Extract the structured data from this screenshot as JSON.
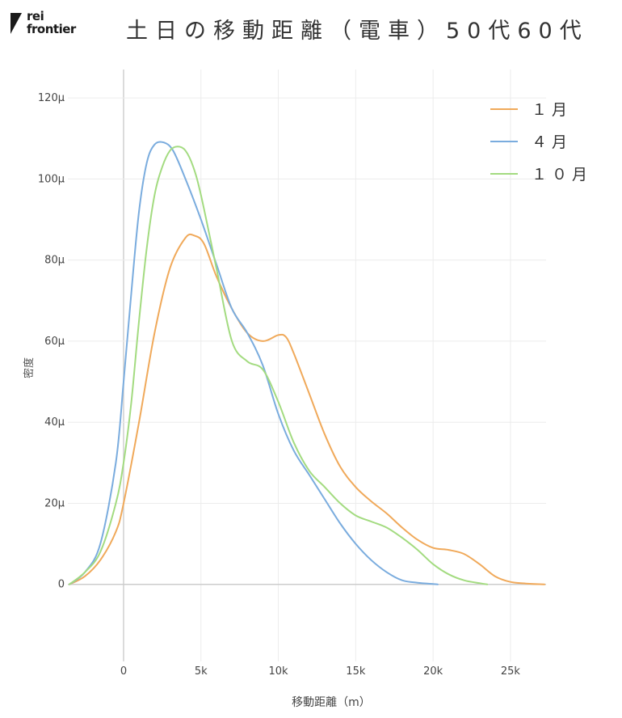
{
  "logo": {
    "line1": "rei",
    "line2": "frontier"
  },
  "title": "土日の移動距離（電車）50代60代",
  "chart_data": {
    "type": "line",
    "title": "土日の移動距離（電車）50代60代",
    "xlabel": "移動距離（m）",
    "ylabel": "密度",
    "xlim": [
      -3600,
      27300
    ],
    "ylim": [
      -19,
      127
    ],
    "x_ticks": [
      0,
      5000,
      10000,
      15000,
      20000,
      25000
    ],
    "x_tick_labels": [
      "0",
      "5k",
      "10k",
      "15k",
      "20k",
      "25k"
    ],
    "y_ticks": [
      0,
      20,
      40,
      60,
      80,
      100,
      120
    ],
    "y_tick_labels": [
      "0",
      "20μ",
      "40μ",
      "60μ",
      "80μ",
      "100μ",
      "120μ"
    ],
    "y_unit": "μ",
    "grid": true,
    "legend_position": "top-right",
    "series": [
      {
        "name": "１月",
        "color": "#F0A95A",
        "x": [
          -3500,
          -2500,
          -1500,
          -500,
          0,
          1000,
          2000,
          3000,
          4000,
          4600,
          5200,
          6000,
          7000,
          8000,
          9000,
          10000,
          10500,
          11000,
          12000,
          13000,
          14000,
          15000,
          16000,
          17000,
          18000,
          19000,
          20000,
          21000,
          22000,
          23000,
          24000,
          25000,
          26000,
          27200
        ],
        "y": [
          0,
          2,
          6,
          13,
          20,
          40,
          62,
          78,
          85.5,
          86,
          84,
          76,
          68,
          62,
          60,
          61.5,
          61,
          57,
          47,
          37,
          29,
          24,
          20.5,
          17.5,
          14,
          11,
          9,
          8.5,
          7.5,
          5,
          2,
          0.6,
          0.2,
          0
        ]
      },
      {
        "name": "４月",
        "color": "#7AACDE",
        "x": [
          -3500,
          -2500,
          -1500,
          -500,
          0,
          500,
          1000,
          1500,
          2000,
          2600,
          3200,
          4000,
          5000,
          6000,
          7000,
          8000,
          9000,
          10000,
          11000,
          12000,
          13000,
          14000,
          15000,
          16000,
          17000,
          18000,
          19000,
          20000,
          20300
        ],
        "y": [
          0,
          3,
          10,
          30,
          50,
          72,
          92,
          104,
          108.5,
          109,
          107,
          100,
          90,
          79,
          68,
          62,
          54,
          42,
          33,
          27,
          21,
          15,
          10,
          6,
          3,
          1,
          0.4,
          0.1,
          0
        ]
      },
      {
        "name": "１０月",
        "color": "#A3DB80",
        "x": [
          -3500,
          -2500,
          -1500,
          -500,
          0,
          500,
          1000,
          1500,
          2000,
          2500,
          3000,
          3500,
          4000,
          4500,
          5000,
          6000,
          7000,
          8000,
          9000,
          10000,
          11000,
          12000,
          13000,
          14000,
          15000,
          16000,
          17000,
          18000,
          19000,
          20000,
          21000,
          22000,
          23000,
          23500
        ],
        "y": [
          0,
          3,
          8,
          20,
          30,
          45,
          65,
          83,
          96,
          103,
          107,
          108,
          107,
          103,
          96,
          78,
          60,
          55,
          53,
          45,
          35,
          28,
          24,
          20,
          17,
          15.5,
          14,
          11.5,
          8.5,
          5,
          2.5,
          1,
          0.3,
          0
        ]
      }
    ]
  }
}
